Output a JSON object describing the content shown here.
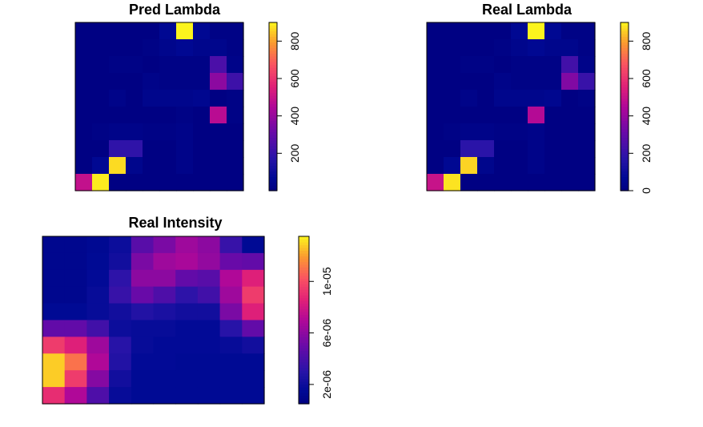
{
  "chart_data": [
    {
      "type": "heatmap",
      "title": "Pred Lambda",
      "xlabel": "",
      "ylabel": "",
      "axes": false,
      "legend": "right",
      "colorbar": {
        "zlim": [
          0,
          900
        ],
        "ticks": [
          200,
          400,
          600,
          800
        ],
        "labels": [
          "200",
          "400",
          "600",
          "800"
        ]
      },
      "nrows": 10,
      "ncols": 10,
      "values": [
        [
          10,
          10,
          10,
          10,
          10,
          60,
          900,
          60,
          20,
          20
        ],
        [
          10,
          10,
          10,
          10,
          20,
          40,
          60,
          40,
          40,
          20
        ],
        [
          10,
          10,
          20,
          20,
          10,
          20,
          20,
          20,
          250,
          30
        ],
        [
          10,
          10,
          10,
          10,
          30,
          20,
          20,
          20,
          380,
          220
        ],
        [
          10,
          10,
          30,
          10,
          40,
          40,
          40,
          50,
          10,
          20
        ],
        [
          10,
          10,
          10,
          10,
          10,
          10,
          20,
          10,
          470,
          20
        ],
        [
          10,
          20,
          30,
          30,
          20,
          20,
          30,
          10,
          10,
          10
        ],
        [
          10,
          10,
          190,
          190,
          10,
          10,
          30,
          10,
          10,
          10
        ],
        [
          10,
          60,
          870,
          40,
          10,
          10,
          30,
          10,
          10,
          10
        ],
        [
          490,
          890,
          10,
          10,
          10,
          10,
          10,
          10,
          10,
          10
        ]
      ]
    },
    {
      "type": "heatmap",
      "title": "Real Lambda",
      "xlabel": "",
      "ylabel": "",
      "axes": false,
      "legend": "right",
      "colorbar": {
        "zlim": [
          0,
          900
        ],
        "ticks": [
          0,
          200,
          400,
          600,
          800
        ],
        "labels": [
          "0",
          "200",
          "400",
          "600",
          "800"
        ]
      },
      "nrows": 10,
      "ncols": 10,
      "values": [
        [
          10,
          10,
          10,
          10,
          10,
          60,
          900,
          60,
          20,
          20
        ],
        [
          10,
          10,
          10,
          10,
          20,
          40,
          60,
          40,
          40,
          20
        ],
        [
          10,
          10,
          20,
          20,
          10,
          20,
          20,
          20,
          230,
          30
        ],
        [
          10,
          10,
          10,
          10,
          30,
          20,
          20,
          20,
          360,
          210
        ],
        [
          10,
          10,
          30,
          10,
          40,
          40,
          40,
          50,
          10,
          20
        ],
        [
          10,
          10,
          10,
          10,
          10,
          10,
          460,
          10,
          10,
          10
        ],
        [
          10,
          20,
          30,
          30,
          20,
          20,
          30,
          10,
          10,
          10
        ],
        [
          10,
          10,
          180,
          180,
          10,
          10,
          30,
          10,
          10,
          10
        ],
        [
          10,
          60,
          860,
          40,
          10,
          10,
          30,
          10,
          10,
          10
        ],
        [
          500,
          880,
          10,
          10,
          10,
          10,
          10,
          10,
          10,
          10
        ]
      ]
    },
    {
      "type": "heatmap",
      "title": "Real Intensity",
      "xlabel": "",
      "ylabel": "",
      "axes": false,
      "legend": "right",
      "colorbar": {
        "zlim": [
          5e-07,
          1.35e-05
        ],
        "ticks": [
          2e-06,
          6e-06,
          1e-05
        ],
        "labels": [
          "2e-06",
          "6e-06",
          "1e-05"
        ]
      },
      "nrows": 10,
      "ncols": 10,
      "values": [
        [
          1.2e-06,
          1.2e-06,
          1.4e-06,
          2e-06,
          4.5e-06,
          5.5e-06,
          6.5e-06,
          6e-06,
          3.5e-06,
          1.5e-06
        ],
        [
          1.2e-06,
          1.2e-06,
          1.5e-06,
          2.2e-06,
          5.5e-06,
          6.5e-06,
          6.8e-06,
          6.2e-06,
          5e-06,
          4.8e-06
        ],
        [
          1.2e-06,
          1.2e-06,
          1.6e-06,
          3.2e-06,
          6e-06,
          6e-06,
          4.8e-06,
          4.5e-06,
          7e-06,
          8.5e-06
        ],
        [
          1.2e-06,
          1.2e-06,
          1.8e-06,
          3.5e-06,
          5e-06,
          4.2e-06,
          3.2e-06,
          3.8e-06,
          6.5e-06,
          9.5e-06
        ],
        [
          1.5e-06,
          1.5e-06,
          1.8e-06,
          2.2e-06,
          2.8e-06,
          2.5e-06,
          2.2e-06,
          2.2e-06,
          5.5e-06,
          8.5e-06
        ],
        [
          4.8e-06,
          4.8e-06,
          3.8e-06,
          2e-06,
          1.8e-06,
          1.8e-06,
          1.6e-06,
          1.6e-06,
          3e-06,
          4.8e-06
        ],
        [
          9.5e-06,
          8.5e-06,
          6.5e-06,
          3e-06,
          1.8e-06,
          1.6e-06,
          1.6e-06,
          1.6e-06,
          1.8e-06,
          2.2e-06
        ],
        [
          1.28e-05,
          1.1e-05,
          7e-06,
          2.8e-06,
          1.6e-06,
          1.6e-06,
          1.5e-06,
          1.5e-06,
          1.5e-06,
          1.5e-06
        ],
        [
          1.28e-05,
          9.5e-06,
          5.8e-06,
          2.2e-06,
          1.5e-06,
          1.5e-06,
          1.5e-06,
          1.5e-06,
          1.5e-06,
          1.5e-06
        ],
        [
          9e-06,
          7e-06,
          4.2e-06,
          1.8e-06,
          1.5e-06,
          1.5e-06,
          1.5e-06,
          1.5e-06,
          1.5e-06,
          1.5e-06
        ]
      ]
    }
  ]
}
